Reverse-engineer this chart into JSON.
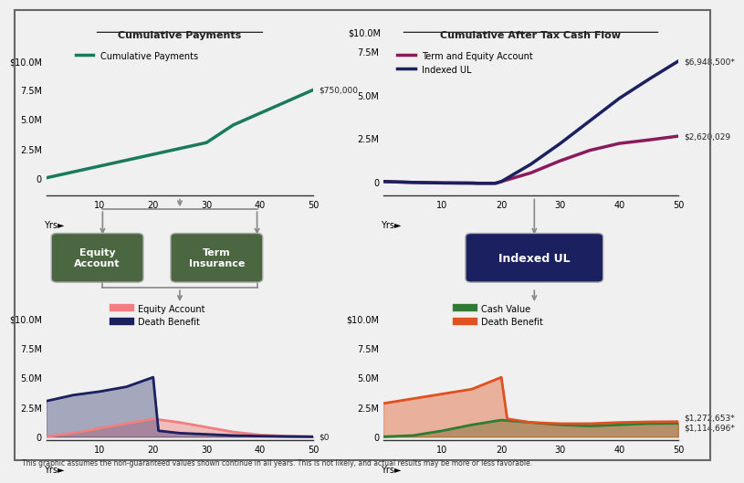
{
  "fig_bg": "#f0f0f0",
  "top_left_title": "Cumulative Payments",
  "top_right_title": "Cumulative After Tax Cash Flow",
  "cum_payments_x": [
    0,
    5,
    10,
    15,
    20,
    25,
    30,
    35,
    40,
    45,
    50
  ],
  "cum_payments_y": [
    0,
    0.05,
    0.1,
    0.15,
    0.2,
    0.25,
    0.3,
    0.45,
    0.55,
    0.65,
    0.75
  ],
  "cum_payments_color": "#1a7a5e",
  "cum_payments_label": "Cumulative Payments",
  "cum_payments_end_label": "$750,000",
  "term_equity_x": [
    0,
    5,
    10,
    15,
    16,
    17,
    18,
    19,
    20,
    25,
    30,
    35,
    40,
    45,
    50
  ],
  "term_equity_y": [
    0,
    -0.05,
    -0.08,
    -0.09,
    -0.1,
    -0.1,
    -0.1,
    -0.1,
    0,
    0.5,
    1.2,
    1.8,
    2.2,
    2.4,
    2.62
  ],
  "term_equity_color": "#8b1a5c",
  "term_equity_label": "Term and Equity Account",
  "term_equity_end_label": "$2,620,029",
  "indexed_ul_cf_x": [
    0,
    5,
    10,
    15,
    16,
    17,
    18,
    19,
    20,
    25,
    30,
    35,
    40,
    45,
    50
  ],
  "indexed_ul_cf_y": [
    0,
    -0.05,
    -0.08,
    -0.09,
    -0.1,
    -0.1,
    -0.1,
    -0.1,
    0,
    1.0,
    2.2,
    3.5,
    4.8,
    5.9,
    6.9485
  ],
  "indexed_ul_cf_color": "#1a2060",
  "indexed_ul_cf_label": "Indexed UL",
  "indexed_ul_cf_end_label": "$6,948,500*",
  "equity_account_x": [
    0,
    5,
    10,
    15,
    20,
    25,
    30,
    35,
    40,
    45,
    50
  ],
  "equity_account_y": [
    0,
    0.3,
    0.7,
    1.1,
    1.5,
    1.2,
    0.8,
    0.4,
    0.15,
    0.05,
    0.0
  ],
  "equity_account_color": "#f08080",
  "equity_account_label": "Equity Account",
  "equity_account_end_label": "$0",
  "death_benefit_x": [
    0,
    5,
    10,
    15,
    20,
    21,
    25,
    30,
    35,
    40,
    45,
    50
  ],
  "death_benefit_y": [
    3.0,
    3.5,
    3.8,
    4.2,
    5.0,
    0.5,
    0.3,
    0.2,
    0.1,
    0.05,
    0.02,
    0.0
  ],
  "death_benefit_color": "#1a2060",
  "death_benefit_label": "Death Benefit",
  "cash_value_x": [
    0,
    5,
    10,
    15,
    20,
    25,
    30,
    35,
    40,
    45,
    50
  ],
  "cash_value_y": [
    0,
    0.1,
    0.5,
    1.0,
    1.4,
    1.2,
    1.0,
    0.9,
    1.0,
    1.1,
    1.114696
  ],
  "cash_value_color": "#2e7d32",
  "cash_value_label": "Cash Value",
  "cash_value_end_label": "$1,114,696*",
  "iul_death_benefit_x": [
    0,
    5,
    10,
    15,
    20,
    21,
    25,
    30,
    35,
    40,
    45,
    50
  ],
  "iul_death_benefit_y": [
    2.8,
    3.2,
    3.6,
    4.0,
    5.0,
    1.5,
    1.2,
    1.1,
    1.1,
    1.2,
    1.25,
    1.272653
  ],
  "iul_death_benefit_color": "#e05020",
  "iul_death_benefit_label": "Death Benefit",
  "iul_death_benefit_end_label": "$1,272,653*",
  "xmin": 0,
  "xmax": 50,
  "xticks": [
    10,
    20,
    30,
    40,
    50
  ],
  "box_equity_label": "Equity\nAccount",
  "box_term_label": "Term\nInsurance",
  "box_iul_label": "Indexed UL",
  "box_equity_color": "#4a6741",
  "box_term_color": "#4a6741",
  "box_iul_color": "#1a2060",
  "footnote": "This graphic assumes the non-guaranteed values shown continue in all years. This is not likely, and actual results may be more or less favorable.",
  "arrow_color": "#888888"
}
